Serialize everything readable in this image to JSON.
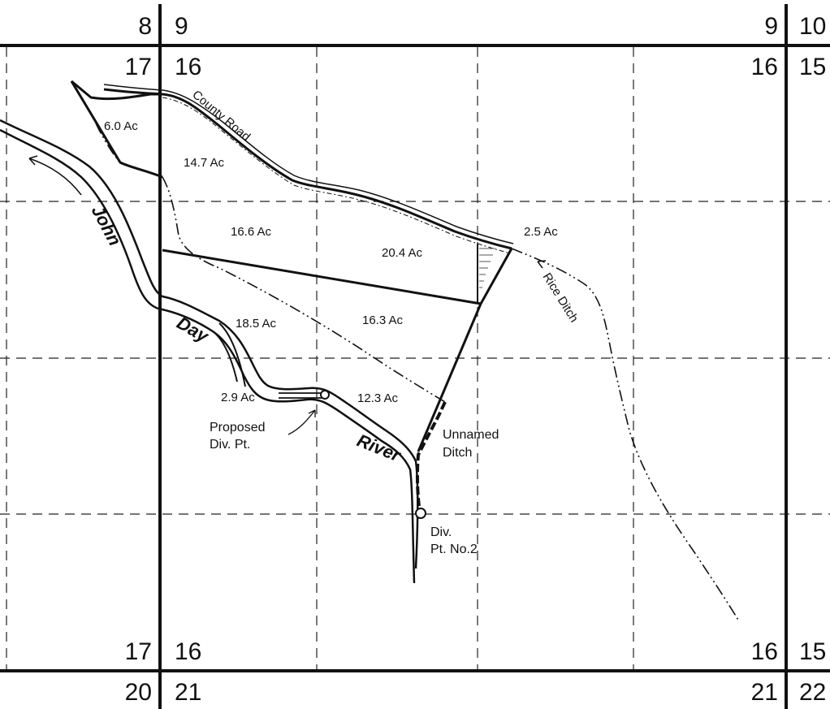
{
  "sections": {
    "top_left_outer": "8",
    "top_left_inner": "9",
    "top_right_outer": "9",
    "top_right_inner": "10",
    "upper_left_outer": "17",
    "upper_left_inner": "16",
    "upper_right_outer": "16",
    "upper_right_inner": "15",
    "lower_left_outer": "17",
    "lower_left_inner": "16",
    "lower_right_outer": "16",
    "lower_right_inner": "15",
    "bottom_left_outer": "20",
    "bottom_left_inner": "21",
    "bottom_right_outer": "21",
    "bottom_right_inner": "22"
  },
  "parcels": [
    {
      "id": "a",
      "label": "6.0 Ac"
    },
    {
      "id": "b",
      "label": "14.7 Ac"
    },
    {
      "id": "c",
      "label": "16.6 Ac"
    },
    {
      "id": "d",
      "label": "20.4 Ac"
    },
    {
      "id": "e",
      "label": "2.5 Ac"
    },
    {
      "id": "f",
      "label": "18.5 Ac"
    },
    {
      "id": "g",
      "label": "16.3 Ac"
    },
    {
      "id": "h",
      "label": "2.9 Ac"
    },
    {
      "id": "i",
      "label": "12.3 Ac"
    }
  ],
  "features": {
    "county_road": "County Road",
    "rice_ditch": "Rice Ditch",
    "river_word_1": "John",
    "river_word_2": "Day",
    "river_word_3": "River",
    "unnamed_ditch_line1": "Unnamed",
    "unnamed_ditch_line2": "Ditch",
    "proposed_line1": "Proposed",
    "proposed_line2": "Div. Pt.",
    "divpt_line1": "Div.",
    "divpt_line2": "Pt. No.2"
  },
  "colors": {
    "ink": "#111111",
    "background": "#ffffff"
  }
}
